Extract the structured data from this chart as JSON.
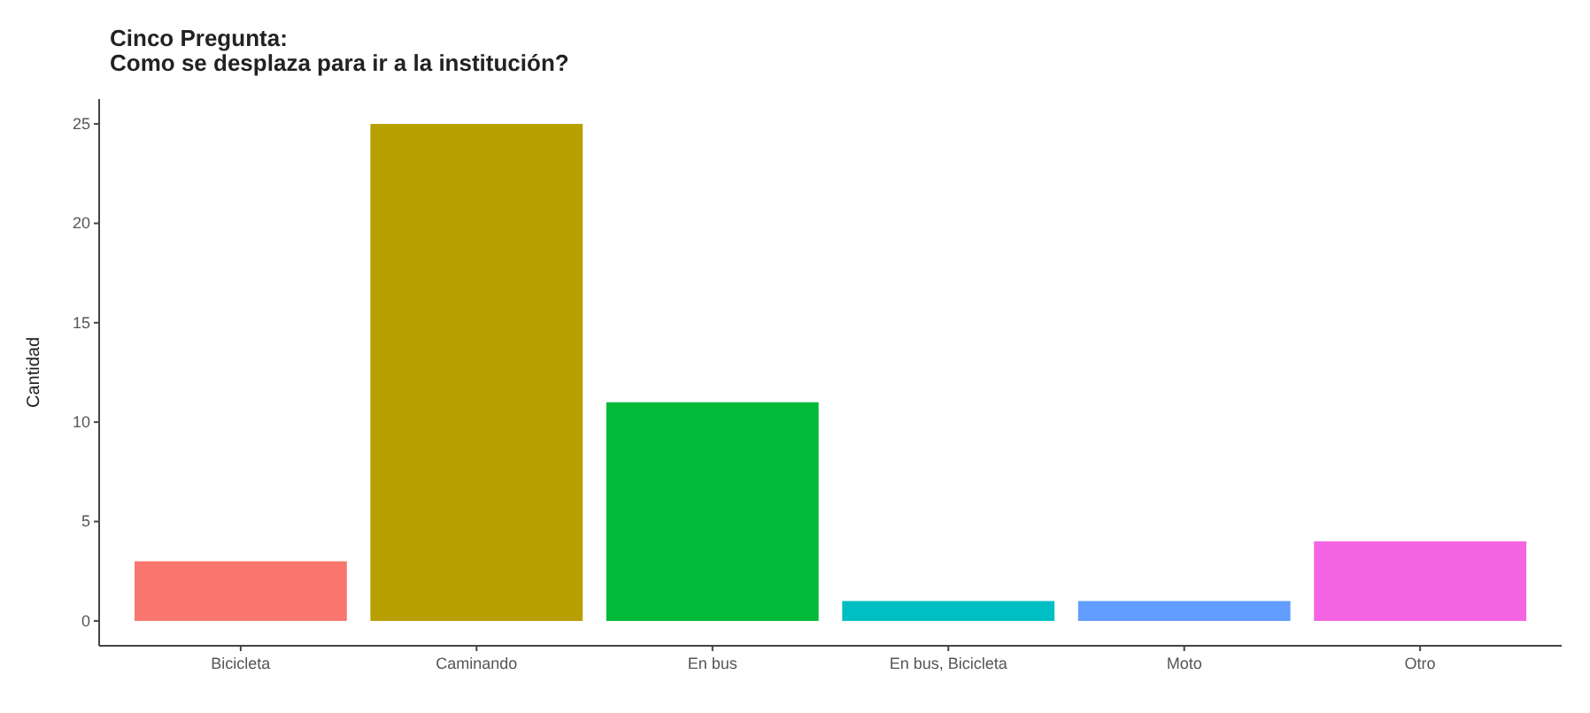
{
  "chart_data": {
    "type": "bar",
    "title": "Cinco Pregunta:\nComo se desplaza para ir a la institución?",
    "ylabel": "Cantidad",
    "categories": [
      "Bicicleta",
      "Caminando",
      "En bus",
      "En bus, Bicicleta",
      "Moto",
      "Otro"
    ],
    "values": [
      3,
      25,
      11,
      1,
      1,
      4
    ],
    "colors": [
      "#f8766d",
      "#b79f00",
      "#00ba38",
      "#00bfc4",
      "#619cff",
      "#f564e3"
    ],
    "ylim": [
      -1.25,
      26.25
    ],
    "yticks": [
      0,
      5,
      10,
      15,
      20,
      25
    ],
    "grid": false
  }
}
